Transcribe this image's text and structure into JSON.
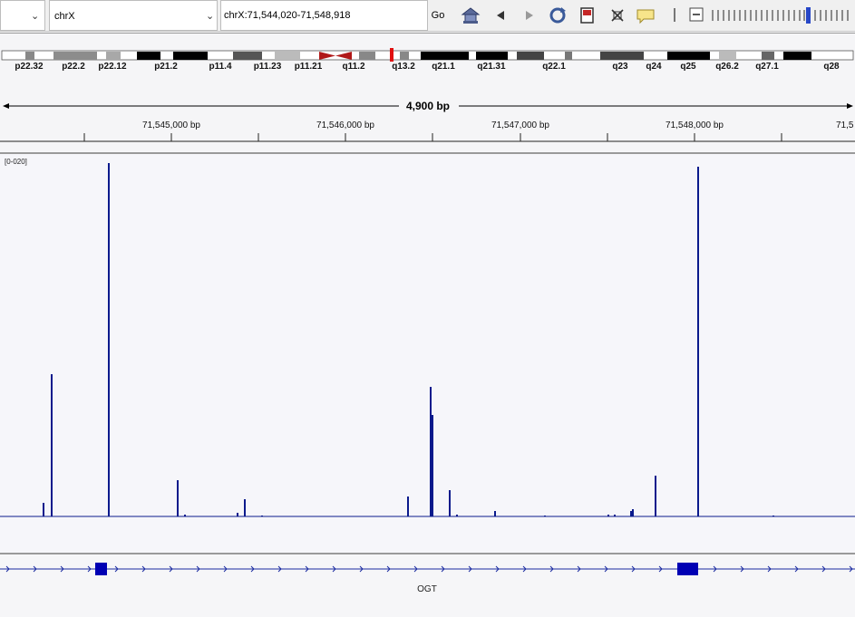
{
  "toolbar": {
    "chromosome": "chrX",
    "locus": "chrX:71,544,020-71,548,918",
    "go_label": "Go",
    "icons": [
      "home-icon",
      "back-icon",
      "forward-icon",
      "refresh-icon",
      "resize-icon",
      "select-region-icon",
      "popup-text-icon",
      "zoom-out-icon",
      "zoom-slider",
      "zoom-level-indicator"
    ]
  },
  "ideogram": {
    "bands": [
      "p22.32",
      "p22.2",
      "p22.12",
      "p21.2",
      "p11.4",
      "p11.23",
      "p11.21",
      "q11.2",
      "q13.2",
      "q21.1",
      "q21.31",
      "q22.1",
      "q23",
      "q24",
      "q25",
      "q26.2",
      "q27.1",
      "q28"
    ]
  },
  "ruler": {
    "span": "4,900 bp",
    "ticks": [
      "71,545,000 bp",
      "71,546,000 bp",
      "71,547,000 bp",
      "71,548,000 bp",
      "71,5"
    ]
  },
  "track": {
    "range_label": "[0-020]",
    "color": "#0a1a8c"
  },
  "gene": {
    "name": "OGT",
    "color": "#0000b4"
  }
}
